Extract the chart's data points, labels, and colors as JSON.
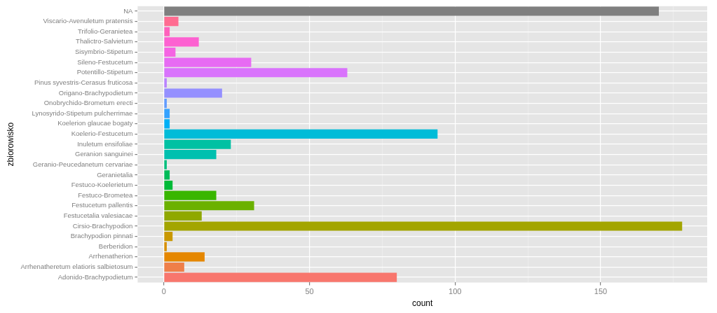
{
  "chart_data": {
    "type": "bar",
    "orientation": "horizontal",
    "xlabel": "count",
    "ylabel": "zbiorowisko",
    "categories": [
      "NA",
      "Viscario-Avenuletum pratensis",
      "Trifolio-Geranietea",
      "Thalictro-Salvietum",
      "Sisymbrio-Stipetum",
      "Sileno-Festucetum",
      "Potentillo-Stipetum",
      "Pinus syvestris-Cerasus fruticosa",
      "Origano-Brachypodietum",
      "Onobrychido-Brometum erecti",
      "Lynosyrido-Stipetum pulcherrimae",
      "Koelerion glaucae bogaty",
      "Koelerio-Festucetum",
      "Inuletum ensifoliae",
      "Geranion sanguinei",
      "Geranio-Peucedanetum cervariae",
      "Geranietalia",
      "Festuco-Koelerietum",
      "Festuco-Brometea",
      "Festucetum pallentis",
      "Festucetalia valesiacae",
      "Cirsio-Brachypodion",
      "Brachypodion pinnati",
      "Berberidion",
      "Arrhenatherion",
      "Arrhenatheretum elatioris salbietosum",
      "Adonido-Brachypodietum"
    ],
    "values": [
      170,
      5,
      2,
      12,
      4,
      30,
      63,
      1,
      20,
      1,
      2,
      2,
      94,
      23,
      18,
      1,
      2,
      3,
      18,
      31,
      13,
      178,
      3,
      1,
      14,
      7,
      80
    ],
    "colors": [
      "#7f7f7f",
      "#ff6c91",
      "#ff62bc",
      "#fd61d1",
      "#f564e3",
      "#e76bf3",
      "#d973fc",
      "#b983ff",
      "#9590ff",
      "#619cff",
      "#35a2ff",
      "#00b0f6",
      "#00bcd8",
      "#00c1a3",
      "#00c0af",
      "#00bf7d",
      "#00bc59",
      "#00ba38",
      "#39b600",
      "#6bb100",
      "#8fa800",
      "#a3a500",
      "#c99800",
      "#d89000",
      "#e58700",
      "#ef7f49",
      "#f8766d"
    ],
    "xlim": [
      -9,
      186.6
    ],
    "xticks": [
      0,
      {
        "value": 25,
        "label": null
      },
      50,
      {
        "value": 75,
        "label": null
      },
      100,
      {
        "value": 125,
        "label": null
      },
      150,
      {
        "value": 175,
        "label": null
      }
    ],
    "grid": true
  }
}
